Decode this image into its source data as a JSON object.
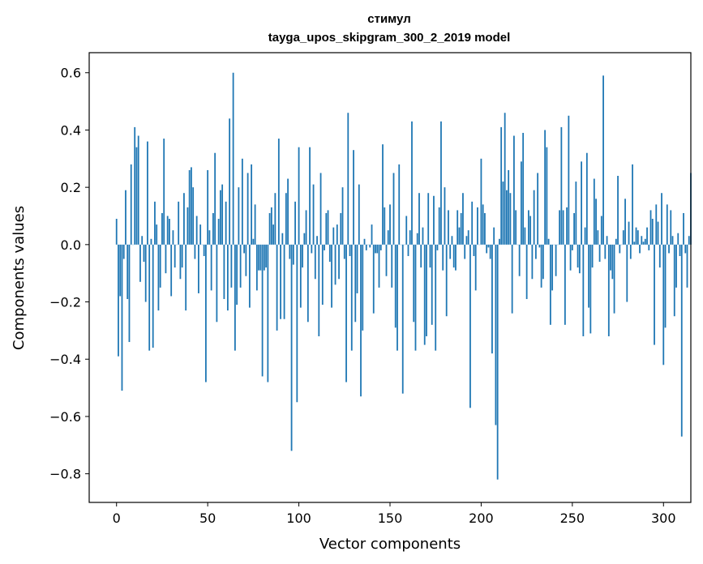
{
  "chart_data": {
    "type": "bar",
    "title": "стимул",
    "subtitle": "tayga_upos_skipgram_300_2_2019 model",
    "xlabel": "Vector components",
    "ylabel": "Components values",
    "xlim": [
      -15,
      315
    ],
    "ylim": [
      -0.9,
      0.67
    ],
    "xticks": [
      0,
      50,
      100,
      150,
      200,
      250,
      300
    ],
    "xtick_labels": [
      "0",
      "50",
      "100",
      "150",
      "200",
      "250",
      "300"
    ],
    "yticks": [
      -0.8,
      -0.6,
      -0.4,
      -0.2,
      0.0,
      0.2,
      0.4,
      0.6
    ],
    "ytick_labels": [
      "−0.8",
      "−0.6",
      "−0.4",
      "−0.2",
      "0.0",
      "0.2",
      "0.4",
      "0.6"
    ],
    "grid": false,
    "bar_color": "#1f77b4",
    "x_start": 0,
    "values": [
      0.09,
      -0.39,
      -0.18,
      -0.51,
      -0.05,
      0.19,
      -0.19,
      -0.34,
      0.28,
      0.0,
      0.41,
      0.34,
      0.38,
      -0.13,
      0.03,
      -0.06,
      -0.2,
      0.36,
      -0.37,
      0.02,
      -0.36,
      0.15,
      0.07,
      -0.23,
      -0.15,
      0.11,
      0.37,
      -0.1,
      0.1,
      0.09,
      -0.18,
      0.05,
      -0.08,
      0.0,
      0.15,
      -0.12,
      -0.08,
      0.18,
      -0.23,
      0.13,
      0.26,
      0.27,
      0.2,
      -0.05,
      0.1,
      -0.17,
      0.07,
      0.0,
      -0.04,
      -0.48,
      0.26,
      0.05,
      -0.16,
      0.11,
      0.32,
      -0.27,
      0.09,
      0.19,
      0.21,
      -0.19,
      0.15,
      -0.23,
      0.44,
      -0.15,
      0.6,
      -0.37,
      -0.21,
      0.2,
      -0.15,
      0.3,
      -0.03,
      -0.11,
      0.25,
      -0.22,
      0.28,
      0.02,
      0.14,
      -0.16,
      -0.09,
      -0.09,
      -0.46,
      -0.09,
      -0.08,
      -0.48,
      0.11,
      0.13,
      0.07,
      0.18,
      -0.3,
      0.37,
      -0.26,
      0.04,
      -0.26,
      0.18,
      0.23,
      -0.05,
      -0.72,
      -0.07,
      0.15,
      -0.55,
      0.34,
      -0.22,
      -0.08,
      0.04,
      0.12,
      -0.27,
      0.34,
      -0.03,
      0.21,
      -0.12,
      0.03,
      -0.32,
      0.25,
      -0.21,
      -0.02,
      0.11,
      0.12,
      -0.06,
      -0.22,
      0.06,
      -0.14,
      0.07,
      -0.12,
      0.11,
      0.2,
      -0.05,
      -0.48,
      0.46,
      -0.04,
      -0.37,
      0.33,
      -0.27,
      -0.17,
      0.21,
      -0.53,
      -0.3,
      0.02,
      -0.02,
      0.0,
      -0.01,
      0.07,
      -0.24,
      -0.03,
      -0.03,
      -0.15,
      -0.02,
      0.35,
      0.13,
      -0.11,
      0.05,
      0.14,
      -0.15,
      0.25,
      -0.29,
      -0.37,
      0.28,
      0.0,
      -0.52,
      0.0,
      0.1,
      -0.04,
      0.05,
      0.43,
      -0.27,
      -0.37,
      0.04,
      0.18,
      -0.08,
      0.06,
      -0.35,
      -0.32,
      0.18,
      -0.08,
      -0.28,
      0.17,
      -0.37,
      -0.02,
      0.13,
      0.43,
      -0.09,
      0.2,
      -0.25,
      0.12,
      -0.05,
      0.03,
      -0.08,
      -0.09,
      0.12,
      0.06,
      0.11,
      0.18,
      -0.05,
      0.03,
      0.05,
      -0.57,
      0.15,
      -0.04,
      -0.16,
      0.13,
      0.0,
      0.3,
      0.14,
      0.11,
      -0.03,
      -0.01,
      -0.05,
      -0.38,
      0.06,
      -0.63,
      -0.82,
      0.02,
      0.41,
      0.22,
      0.46,
      0.19,
      0.26,
      0.18,
      -0.24,
      0.38,
      0.12,
      0.0,
      -0.11,
      0.29,
      0.39,
      0.06,
      -0.19,
      0.12,
      0.1,
      -0.12,
      0.19,
      -0.05,
      0.25,
      -0.01,
      -0.15,
      -0.12,
      0.4,
      0.34,
      0.02,
      -0.28,
      -0.16,
      0.0,
      -0.11,
      0.0,
      0.12,
      0.41,
      0.12,
      -0.28,
      0.13,
      0.45,
      -0.09,
      -0.02,
      0.11,
      0.22,
      -0.08,
      -0.1,
      0.29,
      -0.32,
      0.06,
      0.32,
      -0.22,
      -0.31,
      -0.08,
      0.23,
      0.16,
      0.05,
      -0.06,
      0.1,
      0.59,
      -0.05,
      0.03,
      -0.32,
      -0.09,
      -0.12,
      -0.24,
      0.02,
      0.24,
      -0.03,
      0.0,
      0.05,
      0.16,
      -0.2,
      0.08,
      -0.05,
      0.28,
      0.01,
      0.06,
      0.05,
      -0.03,
      0.03,
      0.01,
      0.02,
      0.06,
      -0.02,
      0.12,
      0.09,
      -0.35,
      0.14,
      0.08,
      -0.08,
      0.18,
      -0.42,
      -0.29,
      0.14,
      -0.03,
      0.12,
      0.03,
      -0.25,
      -0.15,
      0.04,
      -0.04,
      -0.67,
      0.11,
      -0.03,
      -0.15,
      0.03,
      0.25
    ]
  }
}
